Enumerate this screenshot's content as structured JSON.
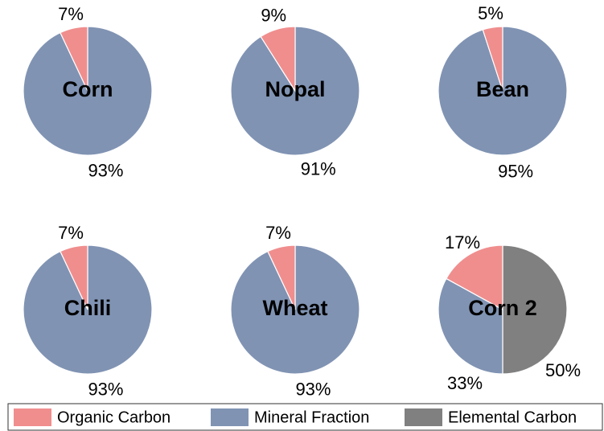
{
  "chart_data": [
    {
      "type": "pie",
      "title": "Corn",
      "values": [
        7,
        93
      ],
      "value_labels": [
        "7%",
        "93%"
      ]
    },
    {
      "type": "pie",
      "title": "Nopal",
      "values": [
        9,
        91
      ],
      "value_labels": [
        "9%",
        "91%"
      ]
    },
    {
      "type": "pie",
      "title": "Bean",
      "values": [
        5,
        95
      ],
      "value_labels": [
        "5%",
        "95%"
      ]
    },
    {
      "type": "pie",
      "title": "Chili",
      "values": [
        7,
        93
      ],
      "value_labels": [
        "7%",
        "93%"
      ]
    },
    {
      "type": "pie",
      "title": "Wheat",
      "values": [
        7,
        93
      ],
      "value_labels": [
        "7%",
        "93%"
      ]
    },
    {
      "type": "pie",
      "title": "Corn 2",
      "values": [
        17,
        33,
        50
      ],
      "value_labels": [
        "17%",
        "33%",
        "50%"
      ]
    }
  ],
  "legend": {
    "series": [
      {
        "name": "Organic Carbon",
        "color": "#f08e8e"
      },
      {
        "name": "Mineral Fraction",
        "color": "#8093b3"
      },
      {
        "name": "Elemental Carbon",
        "color": "#808080"
      }
    ]
  }
}
